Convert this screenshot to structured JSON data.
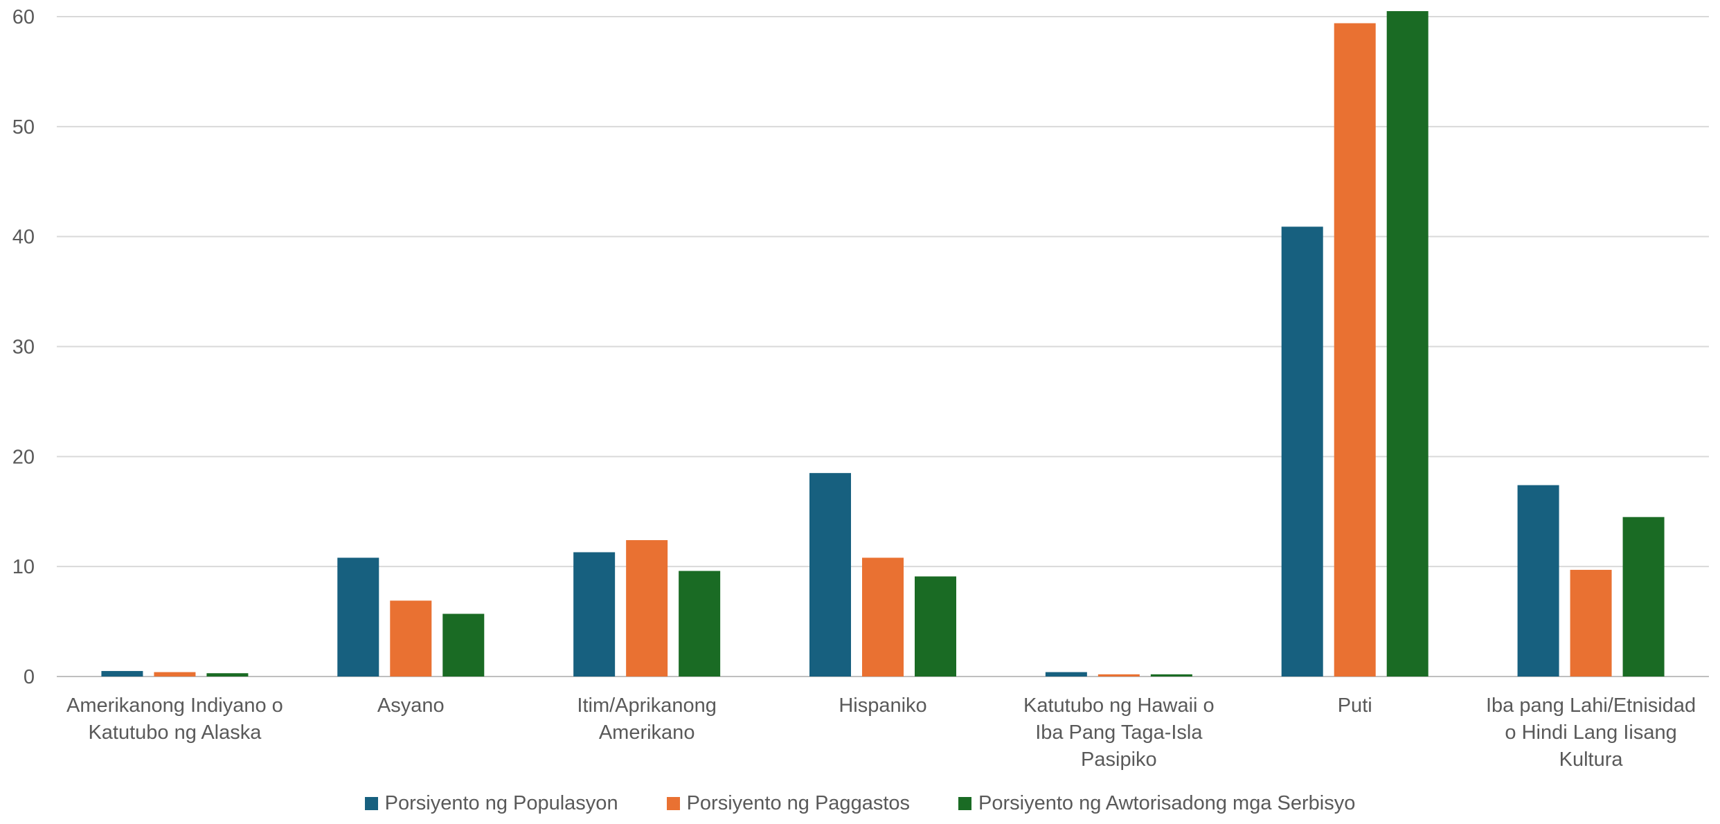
{
  "chart_data": {
    "type": "bar",
    "categories": [
      [
        "Amerikanong Indiyano o",
        "Katutubo ng Alaska"
      ],
      [
        "Asyano"
      ],
      [
        "Itim/Aprikanong",
        "Amerikano"
      ],
      [
        "Hispaniko"
      ],
      [
        "Katutubo ng Hawaii o",
        "Iba Pang Taga-Isla",
        "Pasipiko"
      ],
      [
        "Puti"
      ],
      [
        "Iba pang Lahi/Etnisidad",
        "o Hindi Lang Iisang",
        "Kultura"
      ]
    ],
    "series": [
      {
        "name": "Porsiyento ng Populasyon",
        "color": "#17607f",
        "values": [
          0.5,
          10.8,
          11.3,
          18.5,
          0.4,
          40.9,
          17.4
        ]
      },
      {
        "name": "Porsiyento ng Paggastos",
        "color": "#e97132",
        "values": [
          0.4,
          6.9,
          12.4,
          10.8,
          0.2,
          59.4,
          9.7
        ]
      },
      {
        "name": "Porsiyento ng Awtorisadong mga Serbisyo",
        "color": "#1a6b24",
        "values": [
          0.3,
          5.7,
          9.6,
          9.1,
          0.2,
          60.5,
          14.5
        ]
      }
    ],
    "yticks": [
      0,
      10,
      20,
      30,
      40,
      50,
      60
    ],
    "ylim": [
      0,
      60
    ],
    "grid": true,
    "legend_position": "bottom"
  }
}
